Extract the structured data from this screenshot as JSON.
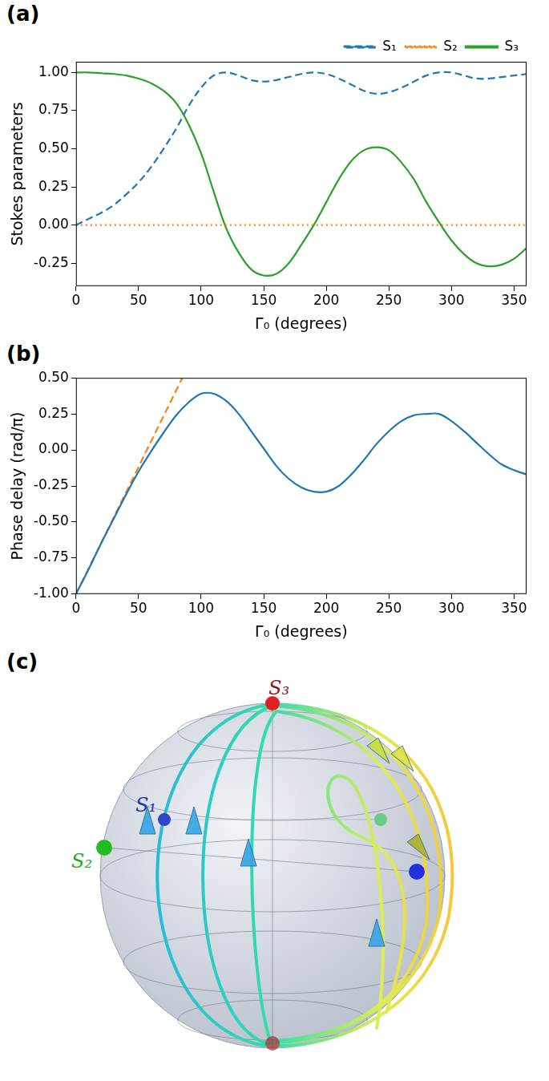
{
  "chart_data": [
    {
      "type": "line",
      "title": "(a)",
      "x_label": "Γ₀ (degrees)",
      "y_label": "Stokes parameters",
      "x": [
        0,
        10,
        20,
        30,
        40,
        50,
        60,
        70,
        80,
        90,
        100,
        110,
        120,
        130,
        140,
        150,
        160,
        170,
        180,
        190,
        200,
        210,
        220,
        230,
        240,
        250,
        260,
        270,
        280,
        290,
        300,
        310,
        320,
        330,
        340,
        350,
        360
      ],
      "series": [
        {
          "name": "S₁",
          "color": "#1f77b4",
          "line_style": "dashed",
          "values": [
            0.0,
            0.04,
            0.08,
            0.13,
            0.2,
            0.28,
            0.38,
            0.5,
            0.63,
            0.78,
            0.9,
            0.98,
            1.0,
            0.98,
            0.95,
            0.94,
            0.95,
            0.97,
            0.99,
            1.0,
            0.99,
            0.96,
            0.92,
            0.88,
            0.86,
            0.87,
            0.9,
            0.94,
            0.98,
            1.0,
            1.0,
            0.98,
            0.96,
            0.96,
            0.97,
            0.98,
            0.99
          ]
        },
        {
          "name": "S₂",
          "color": "#ff7f0e",
          "line_style": "dotted",
          "values": [
            0,
            0,
            0,
            0,
            0,
            0,
            0,
            0,
            0,
            0,
            0,
            0,
            0,
            0,
            0,
            0,
            0,
            0,
            0,
            0,
            0,
            0,
            0,
            0,
            0,
            0,
            0,
            0,
            0,
            0,
            0,
            0,
            0,
            0,
            0,
            0,
            0
          ]
        },
        {
          "name": "S₃",
          "color": "#2ca02c",
          "line_style": "solid",
          "values": [
            1.0,
            1.0,
            0.995,
            0.99,
            0.98,
            0.96,
            0.93,
            0.88,
            0.8,
            0.66,
            0.47,
            0.22,
            -0.02,
            -0.18,
            -0.29,
            -0.33,
            -0.32,
            -0.25,
            -0.13,
            0.0,
            0.15,
            0.3,
            0.42,
            0.49,
            0.51,
            0.49,
            0.41,
            0.3,
            0.15,
            0.02,
            -0.1,
            -0.19,
            -0.25,
            -0.27,
            -0.26,
            -0.22,
            -0.15
          ]
        }
      ],
      "xlim": [
        0,
        360
      ],
      "xticks": [
        0,
        50,
        100,
        150,
        200,
        250,
        300,
        350
      ],
      "ylim": [
        -0.4,
        1.07
      ],
      "yticks": [
        -0.25,
        {
          "value": 0,
          "label": "0.00"
        },
        0.25,
        {
          "value": 0.5,
          "label": "0.50"
        },
        0.75,
        {
          "value": 1,
          "label": "1.00"
        }
      ],
      "grid": false,
      "legend": "top"
    },
    {
      "type": "line",
      "title": "(b)",
      "x_label": "Γ₀ (degrees)",
      "y_label": "Phase delay (rad/π)",
      "series": [
        {
          "color": "#1f77b4",
          "line_style": "solid",
          "x": [
            0,
            10,
            20,
            30,
            40,
            50,
            60,
            70,
            80,
            90,
            100,
            110,
            120,
            130,
            140,
            150,
            160,
            170,
            180,
            190,
            200,
            210,
            220,
            230,
            240,
            250,
            260,
            270,
            280,
            290,
            300,
            310,
            320,
            330,
            340,
            350,
            360
          ],
          "values": [
            -1.0,
            -0.83,
            -0.65,
            -0.48,
            -0.31,
            -0.15,
            -0.01,
            0.12,
            0.24,
            0.33,
            0.39,
            0.39,
            0.34,
            0.25,
            0.13,
            0.01,
            -0.11,
            -0.2,
            -0.26,
            -0.29,
            -0.29,
            -0.25,
            -0.17,
            -0.07,
            0.04,
            0.13,
            0.2,
            0.24,
            0.25,
            0.25,
            0.2,
            0.13,
            0.05,
            -0.03,
            -0.1,
            -0.14,
            -0.17
          ]
        },
        {
          "color": "#ff7f0e",
          "line_style": "dashed",
          "x": [
            0,
            85
          ],
          "values": [
            -1.0,
            0.5
          ]
        }
      ],
      "xlim": [
        0,
        360
      ],
      "xticks": [
        0,
        50,
        100,
        150,
        200,
        250,
        300,
        350
      ],
      "ylim": [
        -1,
        0.5
      ],
      "yticks": [
        {
          "value": -1,
          "label": "-1.00"
        },
        -0.75,
        {
          "value": -0.5,
          "label": "-0.50"
        },
        -0.25,
        {
          "value": 0,
          "label": "0.00"
        },
        0.25,
        {
          "value": 0.5,
          "label": "0.50"
        }
      ],
      "grid": false
    }
  ],
  "sphere": {
    "title": "(c)",
    "labels": [
      "S₃",
      "S₁",
      "S₂"
    ]
  }
}
